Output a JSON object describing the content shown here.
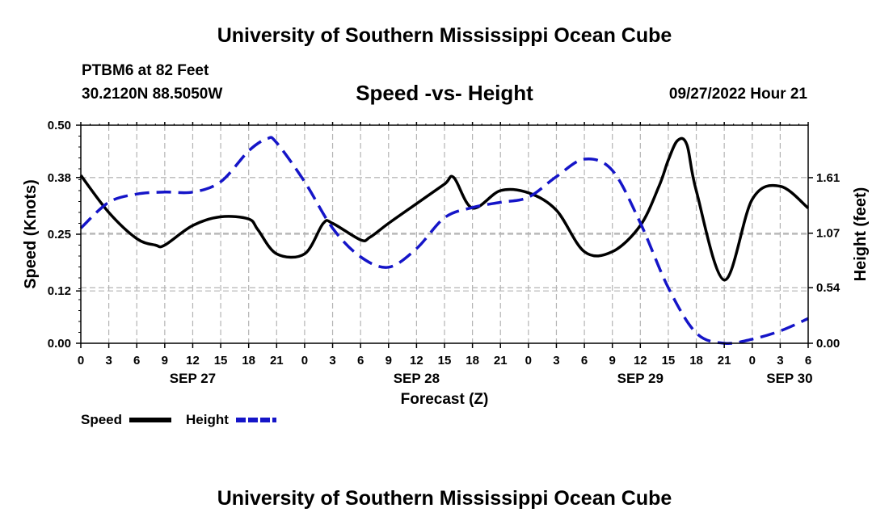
{
  "header": {
    "title": "University of Southern Mississippi Ocean Cube",
    "station": "PTBM6 at 82 Feet",
    "coords": "30.2120N  88.5050W",
    "subtitle": "Speed -vs- Height",
    "datetime": "09/27/2022 Hour 21"
  },
  "footer": {
    "title": "University of Southern Mississippi Ocean Cube"
  },
  "colors": {
    "speed": "#000000",
    "height": "#1515c8",
    "grid": "#b4b4b4"
  },
  "chart_data": {
    "type": "line",
    "xlabel": "Forecast (Z)",
    "ylabel": "Speed (Knots)",
    "y2label": "Height (feet)",
    "xlim": [
      0,
      78
    ],
    "ylim": [
      0.0,
      0.5
    ],
    "y2lim": [
      0.0,
      2.12
    ],
    "grid": true,
    "x_ticks": [
      0,
      3,
      6,
      9,
      12,
      15,
      18,
      21,
      24,
      27,
      30,
      33,
      36,
      39,
      42,
      45,
      48,
      51,
      54,
      57,
      60,
      63,
      66,
      69,
      72,
      75,
      78
    ],
    "x_tick_labels": [
      "0",
      "3",
      "6",
      "9",
      "12",
      "15",
      "18",
      "21",
      "0",
      "3",
      "6",
      "9",
      "12",
      "15",
      "18",
      "21",
      "0",
      "3",
      "6",
      "9",
      "12",
      "15",
      "18",
      "21",
      "0",
      "3",
      "6"
    ],
    "y_ticks": [
      0.0,
      0.12,
      0.25,
      0.38,
      0.5
    ],
    "y_tick_labels": [
      "0.00",
      "0.12",
      "0.25",
      "0.38",
      "0.50"
    ],
    "y2_ticks": [
      0.0,
      0.54,
      1.07,
      1.61
    ],
    "y2_tick_labels": [
      "0.00",
      "0.54",
      "1.07",
      "1.61"
    ],
    "date_labels": [
      {
        "x": 12,
        "label": "SEP 27"
      },
      {
        "x": 36,
        "label": "SEP 28"
      },
      {
        "x": 60,
        "label": "SEP 29"
      },
      {
        "x": 76,
        "label": "SEP 30"
      }
    ],
    "legend": {
      "position": "bottom-left",
      "items": [
        "Speed",
        "Height"
      ]
    },
    "series": [
      {
        "name": "Speed",
        "axis": "left",
        "style": "solid",
        "x": [
          0,
          3,
          6,
          8,
          9,
          12,
          15,
          18,
          19,
          21,
          24,
          26,
          27,
          30,
          31,
          33,
          36,
          39,
          40,
          42,
          45,
          48,
          51,
          54,
          57,
          60,
          62,
          63,
          64,
          65,
          66,
          69,
          72,
          75,
          78
        ],
        "y": [
          0.385,
          0.3,
          0.24,
          0.225,
          0.225,
          0.27,
          0.29,
          0.285,
          0.26,
          0.205,
          0.205,
          0.275,
          0.275,
          0.237,
          0.243,
          0.275,
          0.32,
          0.365,
          0.38,
          0.31,
          0.35,
          0.345,
          0.305,
          0.21,
          0.21,
          0.27,
          0.36,
          0.42,
          0.465,
          0.455,
          0.35,
          0.145,
          0.33,
          0.36,
          0.31
        ]
      },
      {
        "name": "Height",
        "axis": "right",
        "style": "dashed",
        "x": [
          0,
          3,
          6,
          9,
          12,
          15,
          18,
          20,
          21,
          24,
          27,
          30,
          33,
          36,
          39,
          42,
          45,
          48,
          51,
          54,
          57,
          60,
          63,
          66,
          69,
          72,
          75,
          78
        ],
        "y": [
          1.12,
          1.37,
          1.45,
          1.47,
          1.47,
          1.57,
          1.87,
          1.99,
          1.95,
          1.57,
          1.12,
          0.84,
          0.74,
          0.92,
          1.22,
          1.32,
          1.37,
          1.42,
          1.62,
          1.79,
          1.68,
          1.17,
          0.54,
          0.1,
          0.0,
          0.04,
          0.12,
          0.24
        ]
      }
    ]
  }
}
